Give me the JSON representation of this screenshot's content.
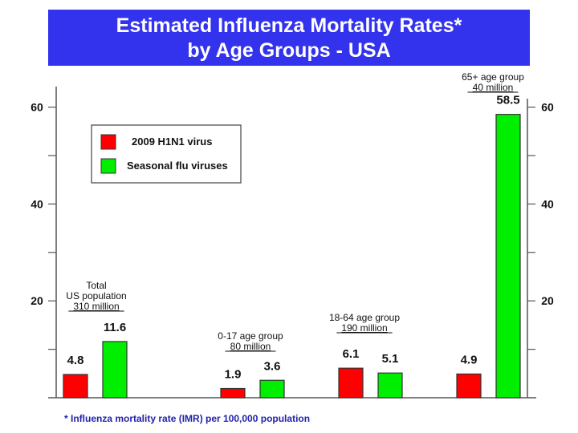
{
  "chart_data": {
    "type": "bar",
    "title_line1": "Estimated Influenza Mortality Rates*",
    "title_line2": "by Age Groups - USA",
    "xlabel": "",
    "ylabel": "",
    "ylim": [
      0,
      65
    ],
    "yticks_major": [
      20,
      40,
      60
    ],
    "yticks_minor": [
      10,
      30,
      50
    ],
    "ytick_labels": [
      "20",
      "40",
      "60"
    ],
    "grid": false,
    "legend_position": "top-left",
    "categories": [
      {
        "label_lines": [
          "Total",
          "US population"
        ],
        "population": "310 million"
      },
      {
        "label_lines": [
          "0-17 age group"
        ],
        "population": "80 million"
      },
      {
        "label_lines": [
          "18-64  age group"
        ],
        "population": "190 million"
      },
      {
        "label_lines": [
          "65+ age group"
        ],
        "population": "40 million"
      }
    ],
    "series": [
      {
        "name": "2009 H1N1 virus",
        "color": "#ff0000",
        "values": [
          4.8,
          1.9,
          6.1,
          4.9
        ],
        "value_labels": [
          "4.8",
          "1.9",
          "6.1",
          "4.9"
        ]
      },
      {
        "name": "Seasonal flu viruses",
        "color": "#00ee00",
        "values": [
          11.6,
          3.6,
          5.1,
          58.5
        ],
        "value_labels": [
          "11.6",
          "3.6",
          "5.1",
          "58.5"
        ]
      }
    ],
    "footnote": "* Influenza mortality rate (IMR) per 100,000 population"
  }
}
